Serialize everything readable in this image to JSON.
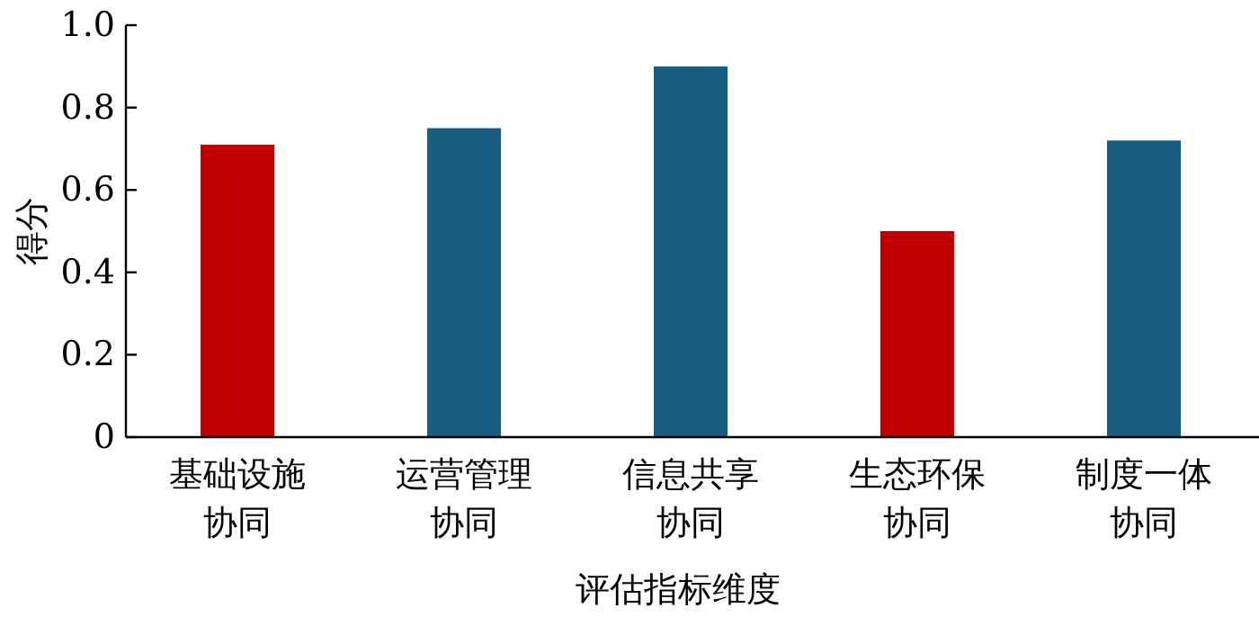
{
  "chart_data": {
    "type": "bar",
    "xlabel": "评估指标维度",
    "ylabel": "得分",
    "categories": [
      "基础设施协同",
      "运营管理协同",
      "信息共享协同",
      "生态环保协同",
      "制度一体协同"
    ],
    "values": [
      0.71,
      0.75,
      0.9,
      0.5,
      0.72
    ],
    "colors": [
      "#c00000",
      "#175e80",
      "#175e80",
      "#c00000",
      "#175e80"
    ],
    "ylim": [
      0,
      1.0
    ],
    "yticks": [
      0,
      0.2,
      0.4,
      0.6,
      0.8,
      {
        "value": 1.0,
        "label": "1.0"
      }
    ]
  }
}
